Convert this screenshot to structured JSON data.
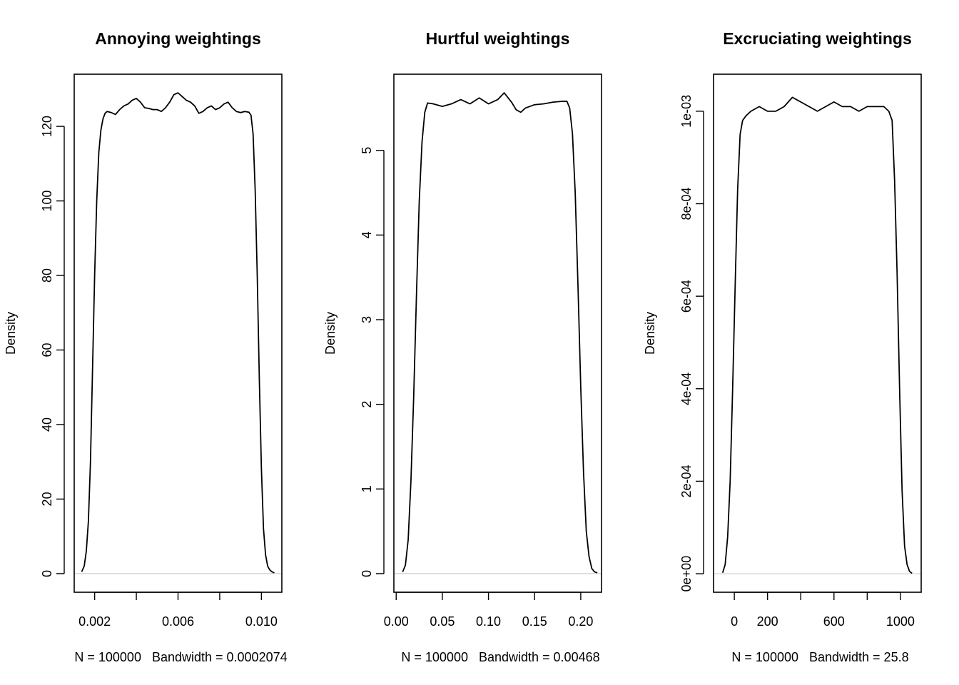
{
  "chart_data": [
    {
      "type": "line",
      "title": "Annoying weightings",
      "ylabel": "Density",
      "xlabel": "N = 100000   Bandwidth = 0.0002074",
      "xlim": [
        0.00102,
        0.01098
      ],
      "ylim": [
        -5,
        134
      ],
      "x_ticks": [
        {
          "value": 0.002,
          "label": "0.002"
        },
        {
          "value": 0.004,
          "label": ""
        },
        {
          "value": 0.006,
          "label": "0.006"
        },
        {
          "value": 0.008,
          "label": ""
        },
        {
          "value": 0.01,
          "label": "0.010"
        }
      ],
      "y_ticks": [
        {
          "value": 0,
          "label": "0"
        },
        {
          "value": 20,
          "label": "20"
        },
        {
          "value": 40,
          "label": "40"
        },
        {
          "value": 60,
          "label": "60"
        },
        {
          "value": 80,
          "label": "80"
        },
        {
          "value": 100,
          "label": "100"
        },
        {
          "value": 120,
          "label": "120"
        }
      ],
      "series": [
        {
          "x": [
            0.00138,
            0.0015,
            0.0016,
            0.0017,
            0.0018,
            0.0019,
            0.002,
            0.0021,
            0.0022,
            0.0023,
            0.0024,
            0.0025,
            0.0026,
            0.0028,
            0.003,
            0.0032,
            0.0034,
            0.0036,
            0.0038,
            0.004,
            0.0042,
            0.0044,
            0.0046,
            0.0048,
            0.005,
            0.0052,
            0.0054,
            0.0056,
            0.0058,
            0.006,
            0.0062,
            0.0064,
            0.0066,
            0.0068,
            0.007,
            0.0072,
            0.0074,
            0.0076,
            0.0078,
            0.008,
            0.0082,
            0.0084,
            0.0086,
            0.0088,
            0.009,
            0.0092,
            0.0094,
            0.0095,
            0.0096,
            0.0097,
            0.0098,
            0.0099,
            0.01,
            0.0101,
            0.0102,
            0.0103,
            0.0104,
            0.0105,
            0.01062
          ],
          "y": [
            0.5,
            2,
            6,
            14,
            30,
            55,
            80,
            100,
            113,
            119,
            122,
            123.5,
            124,
            123.7,
            123.2,
            124.5,
            125.5,
            126,
            127,
            127.5,
            126.5,
            125,
            124.8,
            124.5,
            124.5,
            124,
            125,
            126.5,
            128.5,
            129,
            128,
            127,
            126.5,
            125.5,
            123.5,
            124,
            125,
            125.5,
            124.5,
            125,
            126,
            126.5,
            125,
            124,
            123.7,
            124,
            123.8,
            123,
            118,
            103,
            80,
            52,
            28,
            12,
            5,
            2,
            1,
            0.5,
            0.2
          ]
        }
      ]
    },
    {
      "type": "line",
      "title": "Hurtful weightings",
      "ylabel": "Density",
      "xlabel": "N = 100000   Bandwidth = 0.00468",
      "xlim": [
        -0.0025,
        0.2225
      ],
      "ylim": [
        -0.22,
        5.9
      ],
      "x_ticks": [
        {
          "value": 0.0,
          "label": "0.00"
        },
        {
          "value": 0.05,
          "label": "0.05"
        },
        {
          "value": 0.1,
          "label": "0.10"
        },
        {
          "value": 0.15,
          "label": "0.15"
        },
        {
          "value": 0.2,
          "label": "0.20"
        }
      ],
      "y_ticks": [
        {
          "value": 0,
          "label": "0"
        },
        {
          "value": 1,
          "label": "1"
        },
        {
          "value": 2,
          "label": "2"
        },
        {
          "value": 3,
          "label": "3"
        },
        {
          "value": 4,
          "label": "4"
        },
        {
          "value": 5,
          "label": "5"
        }
      ],
      "series": [
        {
          "x": [
            0.007,
            0.01,
            0.013,
            0.016,
            0.019,
            0.022,
            0.025,
            0.028,
            0.031,
            0.034,
            0.04,
            0.05,
            0.06,
            0.07,
            0.08,
            0.09,
            0.1,
            0.11,
            0.117,
            0.125,
            0.13,
            0.135,
            0.14,
            0.15,
            0.16,
            0.17,
            0.18,
            0.185,
            0.188,
            0.191,
            0.194,
            0.197,
            0.2,
            0.203,
            0.206,
            0.209,
            0.212,
            0.215,
            0.218
          ],
          "y": [
            0.02,
            0.1,
            0.4,
            1.1,
            2.1,
            3.3,
            4.4,
            5.1,
            5.45,
            5.56,
            5.55,
            5.52,
            5.55,
            5.6,
            5.55,
            5.62,
            5.55,
            5.6,
            5.68,
            5.57,
            5.48,
            5.45,
            5.5,
            5.54,
            5.55,
            5.57,
            5.58,
            5.58,
            5.5,
            5.2,
            4.5,
            3.4,
            2.2,
            1.2,
            0.5,
            0.2,
            0.06,
            0.02,
            0.01
          ]
        }
      ]
    },
    {
      "type": "line",
      "title": "Excruciating weightings",
      "ylabel": "Density",
      "xlabel": "N = 100000   Bandwidth = 25.8",
      "xlim": [
        -125,
        1125
      ],
      "ylim": [
        -4e-05,
        0.00108
      ],
      "x_ticks": [
        {
          "value": 0,
          "label": "0"
        },
        {
          "value": 200,
          "label": "200"
        },
        {
          "value": 400,
          "label": ""
        },
        {
          "value": 600,
          "label": "600"
        },
        {
          "value": 800,
          "label": ""
        },
        {
          "value": 1000,
          "label": "1000"
        }
      ],
      "y_ticks": [
        {
          "value": 0,
          "label": "0e+00"
        },
        {
          "value": 0.0002,
          "label": "2e-04"
        },
        {
          "value": 0.0004,
          "label": "4e-04"
        },
        {
          "value": 0.0006,
          "label": "6e-04"
        },
        {
          "value": 0.0008,
          "label": "8e-04"
        },
        {
          "value": 0.001,
          "label": "1e-03"
        }
      ],
      "series": [
        {
          "x": [
            -70,
            -55,
            -40,
            -25,
            -10,
            5,
            20,
            35,
            50,
            70,
            100,
            150,
            200,
            250,
            300,
            350,
            400,
            450,
            500,
            550,
            600,
            650,
            700,
            750,
            800,
            850,
            900,
            930,
            950,
            965,
            980,
            995,
            1010,
            1025,
            1040,
            1055,
            1070
          ],
          "y": [
            2e-06,
            2e-05,
            8e-05,
            0.0002,
            0.0004,
            0.00062,
            0.00083,
            0.00095,
            0.00098,
            0.00099,
            0.001,
            0.00101,
            0.001,
            0.001,
            0.00101,
            0.00103,
            0.00102,
            0.00101,
            0.001,
            0.00101,
            0.00102,
            0.00101,
            0.00101,
            0.001,
            0.00101,
            0.00101,
            0.00101,
            0.001,
            0.00098,
            0.00085,
            0.00065,
            0.0004,
            0.00018,
            6e-05,
            2e-05,
            5e-06,
            1e-06
          ]
        }
      ]
    }
  ]
}
